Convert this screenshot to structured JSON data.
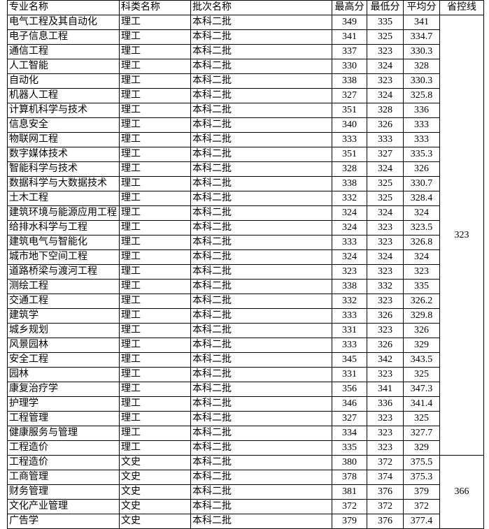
{
  "table": {
    "header": [
      "专业名称",
      "科类名称",
      "批次名称",
      "最高分",
      "最低分",
      "平均分",
      "省控线"
    ],
    "groups": [
      {
        "control": 323,
        "rows": [
          [
            "电气工程及其自动化",
            "理工",
            "本科二批",
            349,
            335,
            341
          ],
          [
            "电子信息工程",
            "理工",
            "本科二批",
            341,
            325,
            334.7
          ],
          [
            "通信工程",
            "理工",
            "本科二批",
            337,
            323,
            330.3
          ],
          [
            "人工智能",
            "理工",
            "本科二批",
            330,
            324,
            328
          ],
          [
            "自动化",
            "理工",
            "本科二批",
            338,
            323,
            330.3
          ],
          [
            "机器人工程",
            "理工",
            "本科二批",
            327,
            324,
            325.8
          ],
          [
            "计算机科学与技术",
            "理工",
            "本科二批",
            351,
            328,
            336
          ],
          [
            "信息安全",
            "理工",
            "本科二批",
            340,
            326,
            333
          ],
          [
            "物联网工程",
            "理工",
            "本科二批",
            333,
            333,
            333
          ],
          [
            "数字媒体技术",
            "理工",
            "本科二批",
            351,
            327,
            335.3
          ],
          [
            "智能科学与技术",
            "理工",
            "本科二批",
            328,
            324,
            326
          ],
          [
            "数据科学与大数据技术",
            "理工",
            "本科二批",
            338,
            325,
            330.7
          ],
          [
            "土木工程",
            "理工",
            "本科二批",
            332,
            325,
            328.4
          ],
          [
            "建筑环境与能源应用工程",
            "理工",
            "本科二批",
            324,
            324,
            324
          ],
          [
            "给排水科学与工程",
            "理工",
            "本科二批",
            324,
            323,
            323.5
          ],
          [
            "建筑电气与智能化",
            "理工",
            "本科二批",
            333,
            323,
            326.8
          ],
          [
            "城市地下空间工程",
            "理工",
            "本科二批",
            324,
            324,
            324
          ],
          [
            "道路桥梁与渡河工程",
            "理工",
            "本科二批",
            323,
            323,
            323
          ],
          [
            "测绘工程",
            "理工",
            "本科二批",
            338,
            332,
            335
          ],
          [
            "交通工程",
            "理工",
            "本科二批",
            332,
            323,
            326.2
          ],
          [
            "建筑学",
            "理工",
            "本科二批",
            333,
            326,
            329.8
          ],
          [
            "城乡规划",
            "理工",
            "本科二批",
            331,
            323,
            326
          ],
          [
            "风景园林",
            "理工",
            "本科二批",
            333,
            326,
            329
          ],
          [
            "安全工程",
            "理工",
            "本科二批",
            345,
            342,
            343.5
          ],
          [
            "园林",
            "理工",
            "本科二批",
            331,
            323,
            325
          ],
          [
            "康复治疗学",
            "理工",
            "本科二批",
            356,
            341,
            347.3
          ],
          [
            "护理学",
            "理工",
            "本科二批",
            346,
            336,
            341.4
          ],
          [
            "工程管理",
            "理工",
            "本科二批",
            327,
            323,
            325
          ],
          [
            "健康服务与管理",
            "理工",
            "本科二批",
            334,
            323,
            327.7
          ],
          [
            "工程造价",
            "理工",
            "本科二批",
            335,
            323,
            329
          ]
        ]
      },
      {
        "control": 366,
        "rows": [
          [
            "工程造价",
            "文史",
            "本科二批",
            380,
            372,
            375.5
          ],
          [
            "工商管理",
            "文史",
            "本科二批",
            378,
            374,
            375.3
          ],
          [
            "财务管理",
            "文史",
            "本科二批",
            381,
            376,
            379
          ],
          [
            "文化产业管理",
            "文史",
            "本科二批",
            372,
            372,
            372
          ],
          [
            "广告学",
            "文史",
            "本科二批",
            379,
            376,
            377.4
          ]
        ]
      }
    ]
  }
}
